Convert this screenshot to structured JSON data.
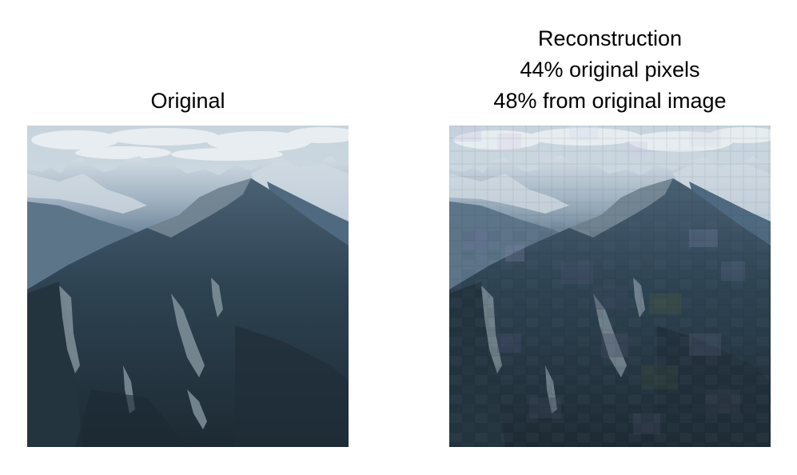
{
  "left_panel": {
    "title": "Original",
    "image": "mountain-landscape"
  },
  "right_panel": {
    "title_lines": [
      "Reconstruction",
      "44% original pixels",
      "48% from original image"
    ],
    "image": "mountain-landscape-reconstruction-patchwork"
  },
  "colors": {
    "sky_top": "#c9d6df",
    "sky_bottom": "#dfe8ee",
    "cloud": "#eef2f5",
    "far_peaks": "#7f95a8",
    "snow": "#d5dee6",
    "mid_slope": "#5f7a90",
    "main_mountain": "#2b3d4a",
    "dark_valley": "#1e2c36",
    "rock": "#8e9ea6"
  }
}
